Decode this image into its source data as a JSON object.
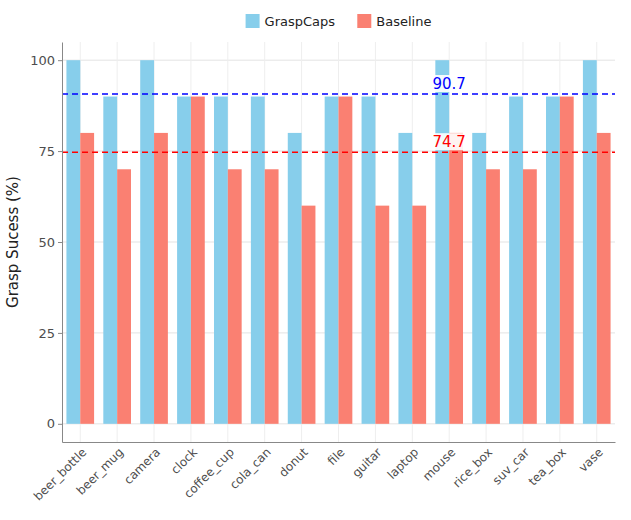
{
  "chart_data": {
    "type": "bar",
    "y_label": "Grasp Sucess (%)",
    "categories": [
      "beer_bottle",
      "beer_mug",
      "camera",
      "clock",
      "coffee_cup",
      "cola_can",
      "donut",
      "file",
      "guitar",
      "laptop",
      "mouse",
      "rice_box",
      "suv_car",
      "tea_box",
      "vase"
    ],
    "series": [
      {
        "name": "GraspCaps",
        "color": "#87ceeb",
        "values": [
          100,
          90,
          100,
          90,
          90,
          90,
          80,
          90,
          90,
          80,
          100,
          80,
          90,
          90,
          100
        ]
      },
      {
        "name": "Baseline",
        "color": "#fa8072",
        "values": [
          80,
          70,
          80,
          90,
          70,
          70,
          60,
          90,
          60,
          60,
          80,
          70,
          70,
          90,
          80
        ]
      }
    ],
    "mean_lines": [
      {
        "value": 90.7,
        "color": "#0000ff"
      },
      {
        "value": 74.7,
        "color": "#ff0000"
      }
    ],
    "ylim": [
      -5,
      105
    ],
    "yticks": [
      0,
      25,
      50,
      75,
      100
    ],
    "grid": true,
    "legend": "top"
  }
}
